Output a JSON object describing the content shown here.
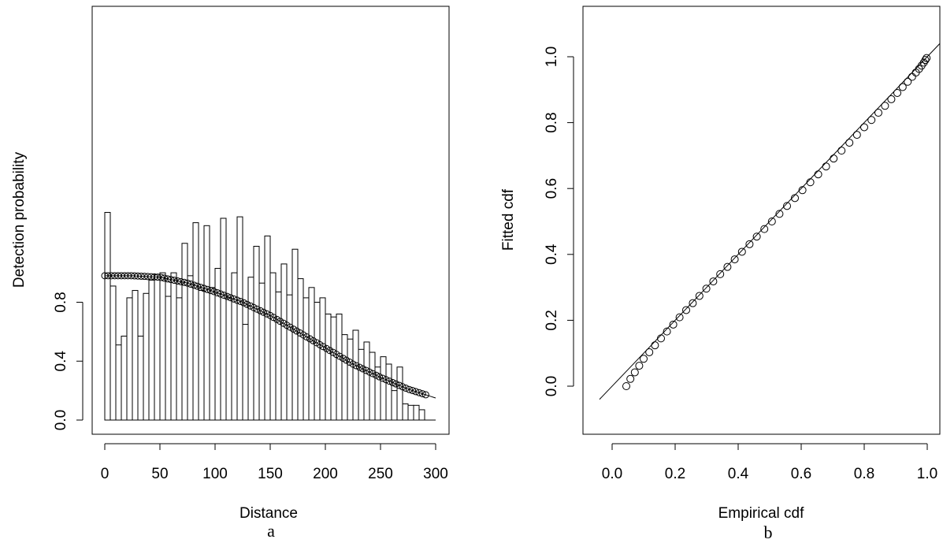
{
  "chart_data": [
    {
      "type": "bar",
      "panel_label": "a",
      "xlabel": "Distance",
      "ylabel": "Detection probability",
      "xlim": [
        0,
        300
      ],
      "ylim": [
        0,
        1.2
      ],
      "x_ticks": [
        {
          "value": 0,
          "label": "0"
        },
        {
          "value": 50,
          "label": "50"
        },
        {
          "value": 100,
          "label": "100"
        },
        {
          "value": 150,
          "label": "150"
        },
        {
          "value": 200,
          "label": "200"
        },
        {
          "value": 250,
          "label": "250"
        },
        {
          "value": 300,
          "label": "300"
        }
      ],
      "y_ticks": [
        {
          "value": 0.0,
          "label": "0.0"
        },
        {
          "value": 0.4,
          "label": "0.4"
        },
        {
          "value": 0.8,
          "label": "0.8"
        }
      ],
      "bin_width": 5,
      "histogram_heights": [
        1.41,
        0.91,
        0.51,
        0.57,
        0.83,
        0.88,
        0.57,
        0.86,
        0.95,
        0.99,
        1.0,
        0.84,
        1.0,
        0.83,
        1.2,
        0.98,
        1.34,
        0.88,
        1.32,
        0.9,
        1.03,
        1.37,
        0.83,
        1.0,
        1.38,
        0.65,
        0.97,
        1.18,
        0.93,
        1.25,
        1.0,
        0.87,
        1.06,
        0.85,
        1.16,
        0.96,
        0.83,
        0.9,
        0.8,
        0.83,
        0.72,
        0.7,
        0.72,
        0.58,
        0.55,
        0.61,
        0.48,
        0.53,
        0.46,
        0.36,
        0.43,
        0.38,
        0.2,
        0.36,
        0.11,
        0.1,
        0.1,
        0.07
      ],
      "fitted_curve": {
        "x": [
          0,
          25,
          50,
          75,
          100,
          125,
          150,
          175,
          200,
          225,
          250,
          275,
          300
        ],
        "y": [
          0.98,
          0.98,
          0.97,
          0.93,
          0.87,
          0.8,
          0.71,
          0.6,
          0.49,
          0.38,
          0.29,
          0.21,
          0.15
        ]
      },
      "observation_points": {
        "x": [
          0,
          3,
          6,
          9,
          12,
          15,
          18,
          21,
          24,
          27,
          30,
          33,
          36,
          39,
          42,
          45,
          48,
          51,
          54,
          57,
          60,
          63,
          66,
          69,
          72,
          75,
          78,
          81,
          84,
          87,
          90,
          93,
          96,
          99,
          102,
          105,
          108,
          111,
          114,
          117,
          120,
          123,
          126,
          129,
          132,
          135,
          138,
          141,
          144,
          147,
          150,
          153,
          156,
          159,
          162,
          165,
          168,
          171,
          174,
          177,
          180,
          183,
          186,
          189,
          192,
          195,
          198,
          201,
          204,
          207,
          210,
          213,
          216,
          219,
          222,
          225,
          228,
          231,
          234,
          237,
          240,
          243,
          246,
          249,
          252,
          255,
          258,
          261,
          264,
          267,
          270,
          273,
          276,
          279,
          282,
          285,
          288,
          291
        ]
      }
    },
    {
      "type": "scatter",
      "panel_label": "b",
      "xlabel": "Empirical cdf",
      "ylabel": "Fitted cdf",
      "xlim": [
        -0.04,
        1.04
      ],
      "ylim": [
        -0.16,
        1.12
      ],
      "x_ticks": [
        {
          "value": 0.0,
          "label": "0.0"
        },
        {
          "value": 0.2,
          "label": "0.2"
        },
        {
          "value": 0.4,
          "label": "0.4"
        },
        {
          "value": 0.6,
          "label": "0.6"
        },
        {
          "value": 0.8,
          "label": "0.8"
        },
        {
          "value": 1.0,
          "label": "1.0"
        }
      ],
      "y_ticks": [
        {
          "value": 0.0,
          "label": "0.0"
        },
        {
          "value": 0.2,
          "label": "0.2"
        },
        {
          "value": 0.4,
          "label": "0.4"
        },
        {
          "value": 0.6,
          "label": "0.6"
        },
        {
          "value": 0.8,
          "label": "0.8"
        },
        {
          "value": 1.0,
          "label": "1.0"
        }
      ],
      "reference_line": {
        "slope": 1,
        "intercept": 0
      },
      "points": {
        "x": [
          0.045,
          0.058,
          0.072,
          0.086,
          0.1,
          0.118,
          0.136,
          0.155,
          0.174,
          0.194,
          0.214,
          0.235,
          0.256,
          0.277,
          0.299,
          0.321,
          0.343,
          0.366,
          0.389,
          0.412,
          0.436,
          0.459,
          0.483,
          0.507,
          0.531,
          0.555,
          0.58,
          0.604,
          0.629,
          0.654,
          0.679,
          0.703,
          0.728,
          0.753,
          0.777,
          0.8,
          0.823,
          0.845,
          0.866,
          0.886,
          0.905,
          0.922,
          0.938,
          0.952,
          0.964,
          0.974,
          0.982,
          0.989,
          0.994,
          0.998
        ],
        "y": [
          0.0,
          0.022,
          0.042,
          0.062,
          0.083,
          0.103,
          0.124,
          0.145,
          0.166,
          0.187,
          0.209,
          0.231,
          0.252,
          0.274,
          0.296,
          0.318,
          0.34,
          0.362,
          0.385,
          0.408,
          0.431,
          0.454,
          0.477,
          0.5,
          0.523,
          0.547,
          0.571,
          0.595,
          0.619,
          0.643,
          0.667,
          0.691,
          0.715,
          0.739,
          0.763,
          0.786,
          0.808,
          0.83,
          0.851,
          0.871,
          0.89,
          0.908,
          0.924,
          0.939,
          0.952,
          0.963,
          0.973,
          0.982,
          0.99,
          0.996
        ]
      }
    }
  ]
}
